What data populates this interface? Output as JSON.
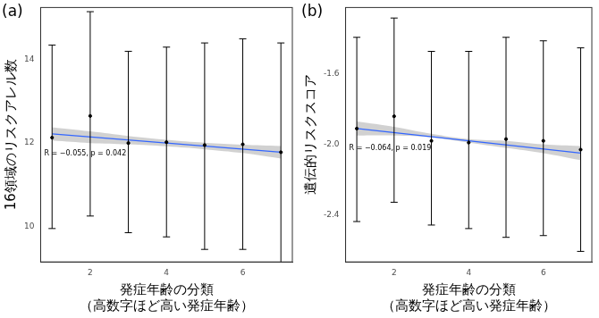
{
  "chart_data": [
    {
      "type": "scatter",
      "panel_label": "(a)",
      "x_label": "発症年齢の分類\n（高数字ほど高い発症年齢）",
      "y_label": "16領域のリスクアレル数",
      "x": [
        1,
        2,
        3,
        4,
        5,
        6,
        7
      ],
      "values": [
        12.13,
        12.65,
        12.0,
        12.02,
        11.95,
        11.97,
        11.78
      ],
      "error_low": [
        9.95,
        10.25,
        9.85,
        9.75,
        9.45,
        9.45,
        9.1
      ],
      "error_high": [
        14.35,
        15.15,
        14.2,
        14.3,
        14.4,
        14.5,
        14.4
      ],
      "color": "#000000",
      "fit": {
        "color": "#3366ff",
        "x": [
          1,
          7
        ],
        "values": [
          12.22,
          11.78
        ]
      },
      "band": {
        "color": "#bdbdbd",
        "x": [
          1,
          2,
          3,
          4,
          5,
          6,
          7
        ],
        "low": [
          12.06,
          12.0,
          11.97,
          11.92,
          11.85,
          11.76,
          11.63
        ],
        "high": [
          12.38,
          12.28,
          12.17,
          12.08,
          12.01,
          11.96,
          11.93
        ]
      },
      "annotation": "R = −0.055, p = 0.042",
      "xlim": [
        0.7,
        7.3
      ],
      "xticks": [
        2,
        4,
        6
      ],
      "ylim": [
        9.15,
        15.25
      ],
      "yticks": [
        10,
        12,
        14
      ],
      "grid": false
    },
    {
      "type": "scatter",
      "panel_label": "(b)",
      "x_label": "発症年齢の分類\n（高数字ほど高い発症年齢）",
      "y_label": "遺伝的リスクスコア",
      "x": [
        1,
        2,
        3,
        4,
        5,
        6,
        7
      ],
      "values": [
        -1.91,
        -1.84,
        -1.98,
        -1.99,
        -1.97,
        -1.98,
        -2.03
      ],
      "error_low": [
        -2.44,
        -2.33,
        -2.46,
        -2.48,
        -2.53,
        -2.52,
        -2.61
      ],
      "error_high": [
        -1.39,
        -1.28,
        -1.47,
        -1.47,
        -1.39,
        -1.41,
        -1.45
      ],
      "color": "#000000",
      "fit": {
        "color": "#3366ff",
        "x": [
          1,
          7
        ],
        "values": [
          -1.91,
          -2.05
        ]
      },
      "band": {
        "color": "#bdbdbd",
        "x": [
          1,
          2,
          3,
          4,
          5,
          6,
          7
        ],
        "low": [
          -1.95,
          -1.95,
          -1.96,
          -1.99,
          -2.02,
          -2.05,
          -2.09
        ],
        "high": [
          -1.87,
          -1.9,
          -1.94,
          -1.97,
          -1.98,
          -2.0,
          -2.01
        ]
      },
      "annotation": "R = −0.064, p = 0.019",
      "xlim": [
        0.7,
        7.3
      ],
      "xticks": [
        2,
        4,
        6
      ],
      "ylim": [
        -2.67,
        -1.22
      ],
      "yticks": [
        -1.6,
        {
          "value": -2,
          "label": "-2.0"
        },
        -2.4
      ],
      "grid": false
    }
  ]
}
